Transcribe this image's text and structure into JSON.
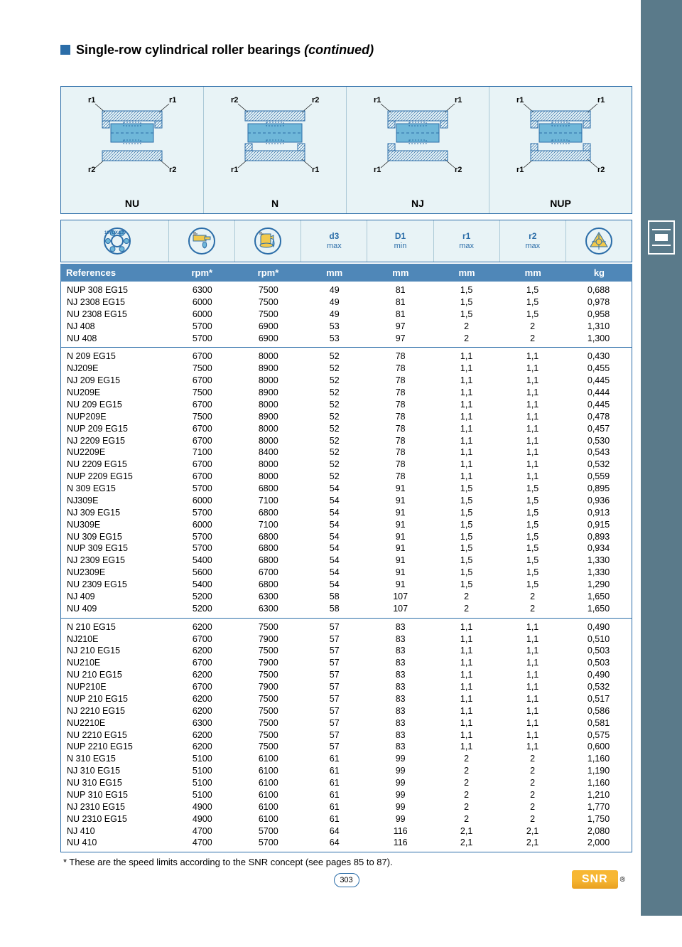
{
  "title": {
    "main": "Single-row cylindrical roller bearings",
    "continued": "(continued)"
  },
  "diagrams": [
    "NU",
    "N",
    "NJ",
    "NUP"
  ],
  "diagram_r_labels": [
    {
      "tl": "r1",
      "tr": "r1",
      "bl": "r2",
      "br": "r2"
    },
    {
      "tl": "r2",
      "tr": "r2",
      "bl": "r1",
      "br": "r1"
    },
    {
      "tl": "r1",
      "tr": "r1",
      "bl": "r1",
      "br": "r2"
    },
    {
      "tl": "r1",
      "tr": "r1",
      "bl": "r1",
      "br": "r2"
    }
  ],
  "icon_heads": [
    {
      "type": "bearing",
      "text": ""
    },
    {
      "type": "grease",
      "text": ""
    },
    {
      "type": "oil",
      "text": ""
    },
    {
      "type": "text",
      "text": "d3",
      "sub": "max"
    },
    {
      "type": "text",
      "text": "D1",
      "sub": "min"
    },
    {
      "type": "text",
      "text": "r1",
      "sub": "max"
    },
    {
      "type": "text",
      "text": "r2",
      "sub": "max"
    },
    {
      "type": "triangle",
      "text": ""
    }
  ],
  "columns": [
    "References",
    "rpm*",
    "rpm*",
    "mm",
    "mm",
    "mm",
    "mm",
    "kg"
  ],
  "groups": [
    [
      [
        "NUP 308 EG15",
        "6300",
        "7500",
        "49",
        "81",
        "1,5",
        "1,5",
        "0,688"
      ],
      [
        "NJ 2308 EG15",
        "6000",
        "7500",
        "49",
        "81",
        "1,5",
        "1,5",
        "0,978"
      ],
      [
        "NU 2308 EG15",
        "6000",
        "7500",
        "49",
        "81",
        "1,5",
        "1,5",
        "0,958"
      ],
      [
        "NJ 408",
        "5700",
        "6900",
        "53",
        "97",
        "2",
        "2",
        "1,310"
      ],
      [
        "NU 408",
        "5700",
        "6900",
        "53",
        "97",
        "2",
        "2",
        "1,300"
      ]
    ],
    [
      [
        "N 209 EG15",
        "6700",
        "8000",
        "52",
        "78",
        "1,1",
        "1,1",
        "0,430"
      ],
      [
        "NJ209E",
        "7500",
        "8900",
        "52",
        "78",
        "1,1",
        "1,1",
        "0,455"
      ],
      [
        "NJ 209 EG15",
        "6700",
        "8000",
        "52",
        "78",
        "1,1",
        "1,1",
        "0,445"
      ],
      [
        "NU209E",
        "7500",
        "8900",
        "52",
        "78",
        "1,1",
        "1,1",
        "0,444"
      ],
      [
        "NU 209 EG15",
        "6700",
        "8000",
        "52",
        "78",
        "1,1",
        "1,1",
        "0,445"
      ],
      [
        "NUP209E",
        "7500",
        "8900",
        "52",
        "78",
        "1,1",
        "1,1",
        "0,478"
      ],
      [
        "NUP 209 EG15",
        "6700",
        "8000",
        "52",
        "78",
        "1,1",
        "1,1",
        "0,457"
      ],
      [
        "NJ 2209 EG15",
        "6700",
        "8000",
        "52",
        "78",
        "1,1",
        "1,1",
        "0,530"
      ],
      [
        "NU2209E",
        "7100",
        "8400",
        "52",
        "78",
        "1,1",
        "1,1",
        "0,543"
      ],
      [
        "NU 2209 EG15",
        "6700",
        "8000",
        "52",
        "78",
        "1,1",
        "1,1",
        "0,532"
      ],
      [
        "NUP 2209 EG15",
        "6700",
        "8000",
        "52",
        "78",
        "1,1",
        "1,1",
        "0,559"
      ],
      [
        "N 309 EG15",
        "5700",
        "6800",
        "54",
        "91",
        "1,5",
        "1,5",
        "0,895"
      ],
      [
        "NJ309E",
        "6000",
        "7100",
        "54",
        "91",
        "1,5",
        "1,5",
        "0,936"
      ],
      [
        "NJ 309 EG15",
        "5700",
        "6800",
        "54",
        "91",
        "1,5",
        "1,5",
        "0,913"
      ],
      [
        "NU309E",
        "6000",
        "7100",
        "54",
        "91",
        "1,5",
        "1,5",
        "0,915"
      ],
      [
        "NU 309 EG15",
        "5700",
        "6800",
        "54",
        "91",
        "1,5",
        "1,5",
        "0,893"
      ],
      [
        "NUP 309 EG15",
        "5700",
        "6800",
        "54",
        "91",
        "1,5",
        "1,5",
        "0,934"
      ],
      [
        "NJ 2309 EG15",
        "5400",
        "6800",
        "54",
        "91",
        "1,5",
        "1,5",
        "1,330"
      ],
      [
        "NU2309E",
        "5600",
        "6700",
        "54",
        "91",
        "1,5",
        "1,5",
        "1,330"
      ],
      [
        "NU 2309 EG15",
        "5400",
        "6800",
        "54",
        "91",
        "1,5",
        "1,5",
        "1,290"
      ],
      [
        "NJ 409",
        "5200",
        "6300",
        "58",
        "107",
        "2",
        "2",
        "1,650"
      ],
      [
        "NU 409",
        "5200",
        "6300",
        "58",
        "107",
        "2",
        "2",
        "1,650"
      ]
    ],
    [
      [
        "N 210 EG15",
        "6200",
        "7500",
        "57",
        "83",
        "1,1",
        "1,1",
        "0,490"
      ],
      [
        "NJ210E",
        "6700",
        "7900",
        "57",
        "83",
        "1,1",
        "1,1",
        "0,510"
      ],
      [
        "NJ 210 EG15",
        "6200",
        "7500",
        "57",
        "83",
        "1,1",
        "1,1",
        "0,503"
      ],
      [
        "NU210E",
        "6700",
        "7900",
        "57",
        "83",
        "1,1",
        "1,1",
        "0,503"
      ],
      [
        "NU 210 EG15",
        "6200",
        "7500",
        "57",
        "83",
        "1,1",
        "1,1",
        "0,490"
      ],
      [
        "NUP210E",
        "6700",
        "7900",
        "57",
        "83",
        "1,1",
        "1,1",
        "0,532"
      ],
      [
        "NUP 210 EG15",
        "6200",
        "7500",
        "57",
        "83",
        "1,1",
        "1,1",
        "0,517"
      ],
      [
        "NJ 2210 EG15",
        "6200",
        "7500",
        "57",
        "83",
        "1,1",
        "1,1",
        "0,586"
      ],
      [
        "NU2210E",
        "6300",
        "7500",
        "57",
        "83",
        "1,1",
        "1,1",
        "0,581"
      ],
      [
        "NU 2210 EG15",
        "6200",
        "7500",
        "57",
        "83",
        "1,1",
        "1,1",
        "0,575"
      ],
      [
        "NUP 2210 EG15",
        "6200",
        "7500",
        "57",
        "83",
        "1,1",
        "1,1",
        "0,600"
      ],
      [
        "N 310 EG15",
        "5100",
        "6100",
        "61",
        "99",
        "2",
        "2",
        "1,160"
      ],
      [
        "NJ 310 EG15",
        "5100",
        "6100",
        "61",
        "99",
        "2",
        "2",
        "1,190"
      ],
      [
        "NU 310 EG15",
        "5100",
        "6100",
        "61",
        "99",
        "2",
        "2",
        "1,160"
      ],
      [
        "NUP 310 EG15",
        "5100",
        "6100",
        "61",
        "99",
        "2",
        "2",
        "1,210"
      ],
      [
        "NJ 2310 EG15",
        "4900",
        "6100",
        "61",
        "99",
        "2",
        "2",
        "1,770"
      ],
      [
        "NU 2310 EG15",
        "4900",
        "6100",
        "61",
        "99",
        "2",
        "2",
        "1,750"
      ],
      [
        "NJ 410",
        "4700",
        "5700",
        "64",
        "116",
        "2,1",
        "2,1",
        "2,080"
      ],
      [
        "NU 410",
        "4700",
        "5700",
        "64",
        "116",
        "2,1",
        "2,1",
        "2,000"
      ]
    ]
  ],
  "footnote": "* These are the speed limits according to the SNR concept (see pages 85 to 87).",
  "page_number": "303",
  "logo_text": "SNR",
  "colors": {
    "accent": "#2b6da8",
    "header_bg": "#4f87b8",
    "diagram_bg": "#e8f3f6",
    "sidebar": "#5a7a8a",
    "logo": "#f7b733"
  }
}
